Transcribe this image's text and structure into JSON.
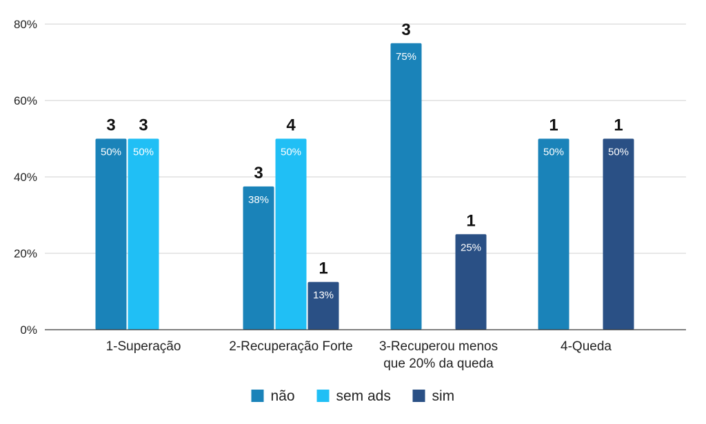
{
  "chart_data": {
    "type": "bar",
    "categories": [
      [
        "1-Superação"
      ],
      [
        "2-Recuperação Forte"
      ],
      [
        "3-Recuperou menos",
        "que 20% da queda"
      ],
      [
        "4-Queda"
      ]
    ],
    "series": [
      {
        "name": "não",
        "color": "#1a83b9",
        "values": [
          50,
          37.5,
          75,
          50
        ],
        "value_labels": [
          "50%",
          "38%",
          "75%",
          "50%"
        ],
        "counts": [
          "3",
          "3",
          "3",
          "1"
        ]
      },
      {
        "name": "sem ads",
        "color": "#20bff5",
        "values": [
          50,
          50,
          null,
          null
        ],
        "value_labels": [
          "50%",
          "50%",
          "",
          ""
        ],
        "counts": [
          "3",
          "4",
          "",
          ""
        ]
      },
      {
        "name": "sim",
        "color": "#2a5085",
        "values": [
          null,
          12.5,
          25,
          50
        ],
        "value_labels": [
          "",
          "13%",
          "25%",
          "50%"
        ],
        "counts": [
          "",
          "1",
          "1",
          "1"
        ]
      }
    ],
    "yticks": [
      "0%",
      "20%",
      "40%",
      "60%",
      "80%"
    ],
    "ylim": [
      0,
      80
    ],
    "grid": true,
    "legend_position": "bottom"
  }
}
